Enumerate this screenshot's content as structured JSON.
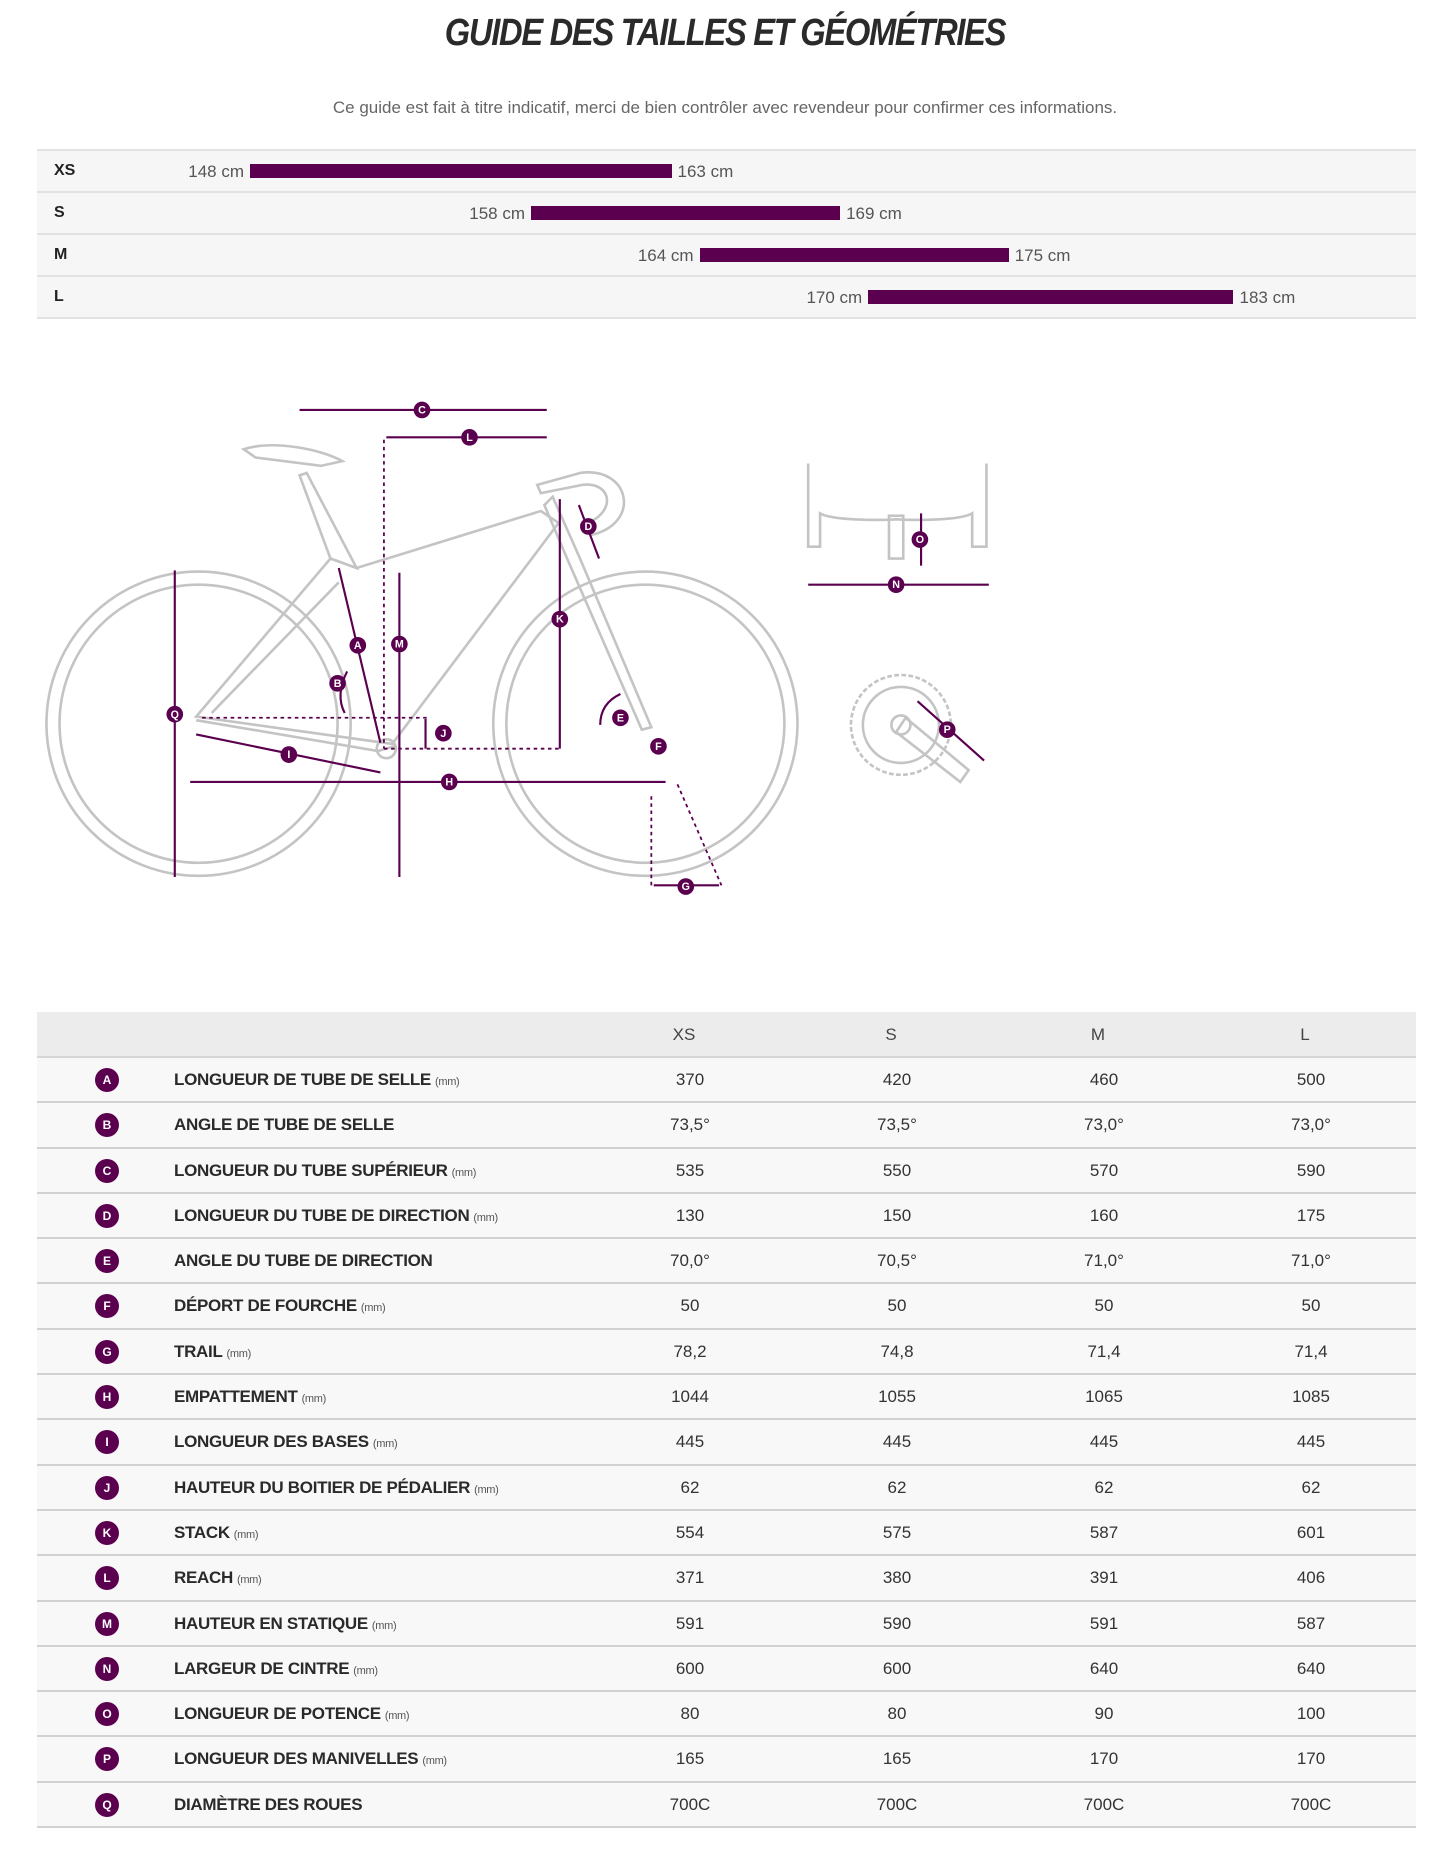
{
  "title": "GUIDE DES TAILLES ET GÉOMÉTRIES",
  "subtitle": "Ce guide est fait à titre indicatif, merci de bien contrôler avec revendeur pour confirmer ces informations.",
  "colors": {
    "accent": "#5a004f",
    "frame": "#bdbdbd"
  },
  "size_ranges": [
    {
      "size": "XS",
      "min": 148,
      "max": 163,
      "min_label": "148 cm",
      "max_label": "163 cm"
    },
    {
      "size": "S",
      "min": 158,
      "max": 169,
      "min_label": "158 cm",
      "max_label": "169 cm"
    },
    {
      "size": "M",
      "min": 164,
      "max": 175,
      "min_label": "164 cm",
      "max_label": "175 cm"
    },
    {
      "size": "L",
      "min": 170,
      "max": 183,
      "min_label": "170 cm",
      "max_label": "183 cm"
    }
  ],
  "table": {
    "columns": [
      "XS",
      "S",
      "M",
      "L"
    ],
    "rows": [
      {
        "letter": "A",
        "label": "LONGUEUR DE TUBE DE SELLE",
        "unit": "(mm)",
        "values": [
          "370",
          "420",
          "460",
          "500"
        ]
      },
      {
        "letter": "B",
        "label": "ANGLE DE TUBE DE SELLE",
        "unit": "",
        "values": [
          "73,5°",
          "73,5°",
          "73,0°",
          "73,0°"
        ]
      },
      {
        "letter": "C",
        "label": "LONGUEUR DU TUBE SUPÉRIEUR",
        "unit": "(mm)",
        "values": [
          "535",
          "550",
          "570",
          "590"
        ]
      },
      {
        "letter": "D",
        "label": "LONGUEUR DU TUBE DE DIRECTION",
        "unit": "(mm)",
        "values": [
          "130",
          "150",
          "160",
          "175"
        ]
      },
      {
        "letter": "E",
        "label": "ANGLE DU TUBE DE DIRECTION",
        "unit": "",
        "values": [
          "70,0°",
          "70,5°",
          "71,0°",
          "71,0°"
        ]
      },
      {
        "letter": "F",
        "label": "DÉPORT DE FOURCHE",
        "unit": "(mm)",
        "values": [
          "50",
          "50",
          "50",
          "50"
        ]
      },
      {
        "letter": "G",
        "label": "TRAIL",
        "unit": "(mm)",
        "values": [
          "78,2",
          "74,8",
          "71,4",
          "71,4"
        ]
      },
      {
        "letter": "H",
        "label": "EMPATTEMENT",
        "unit": "(mm)",
        "values": [
          "1044",
          "1055",
          "1065",
          "1085"
        ]
      },
      {
        "letter": "I",
        "label": "LONGUEUR DES BASES",
        "unit": "(mm)",
        "values": [
          "445",
          "445",
          "445",
          "445"
        ]
      },
      {
        "letter": "J",
        "label": "HAUTEUR DU BOITIER DE PÉDALIER",
        "unit": "(mm)",
        "values": [
          "62",
          "62",
          "62",
          "62"
        ]
      },
      {
        "letter": "K",
        "label": "STACK",
        "unit": "(mm)",
        "values": [
          "554",
          "575",
          "587",
          "601"
        ]
      },
      {
        "letter": "L",
        "label": "REACH",
        "unit": "(mm)",
        "values": [
          "371",
          "380",
          "391",
          "406"
        ]
      },
      {
        "letter": "M",
        "label": "HAUTEUR EN STATIQUE",
        "unit": "(mm)",
        "values": [
          "591",
          "590",
          "591",
          "587"
        ]
      },
      {
        "letter": "N",
        "label": "LARGEUR DE CINTRE",
        "unit": "(mm)",
        "values": [
          "600",
          "600",
          "640",
          "640"
        ]
      },
      {
        "letter": "O",
        "label": "LONGUEUR DE POTENCE",
        "unit": "(mm)",
        "values": [
          "80",
          "80",
          "90",
          "100"
        ]
      },
      {
        "letter": "P",
        "label": "LONGUEUR DES MANIVELLES",
        "unit": "(mm)",
        "values": [
          "165",
          "165",
          "170",
          "170"
        ]
      },
      {
        "letter": "Q",
        "label": "DIAMÈTRE DES ROUES",
        "unit": "",
        "values": [
          "700C",
          "700C",
          "700C",
          "700C"
        ]
      }
    ]
  }
}
